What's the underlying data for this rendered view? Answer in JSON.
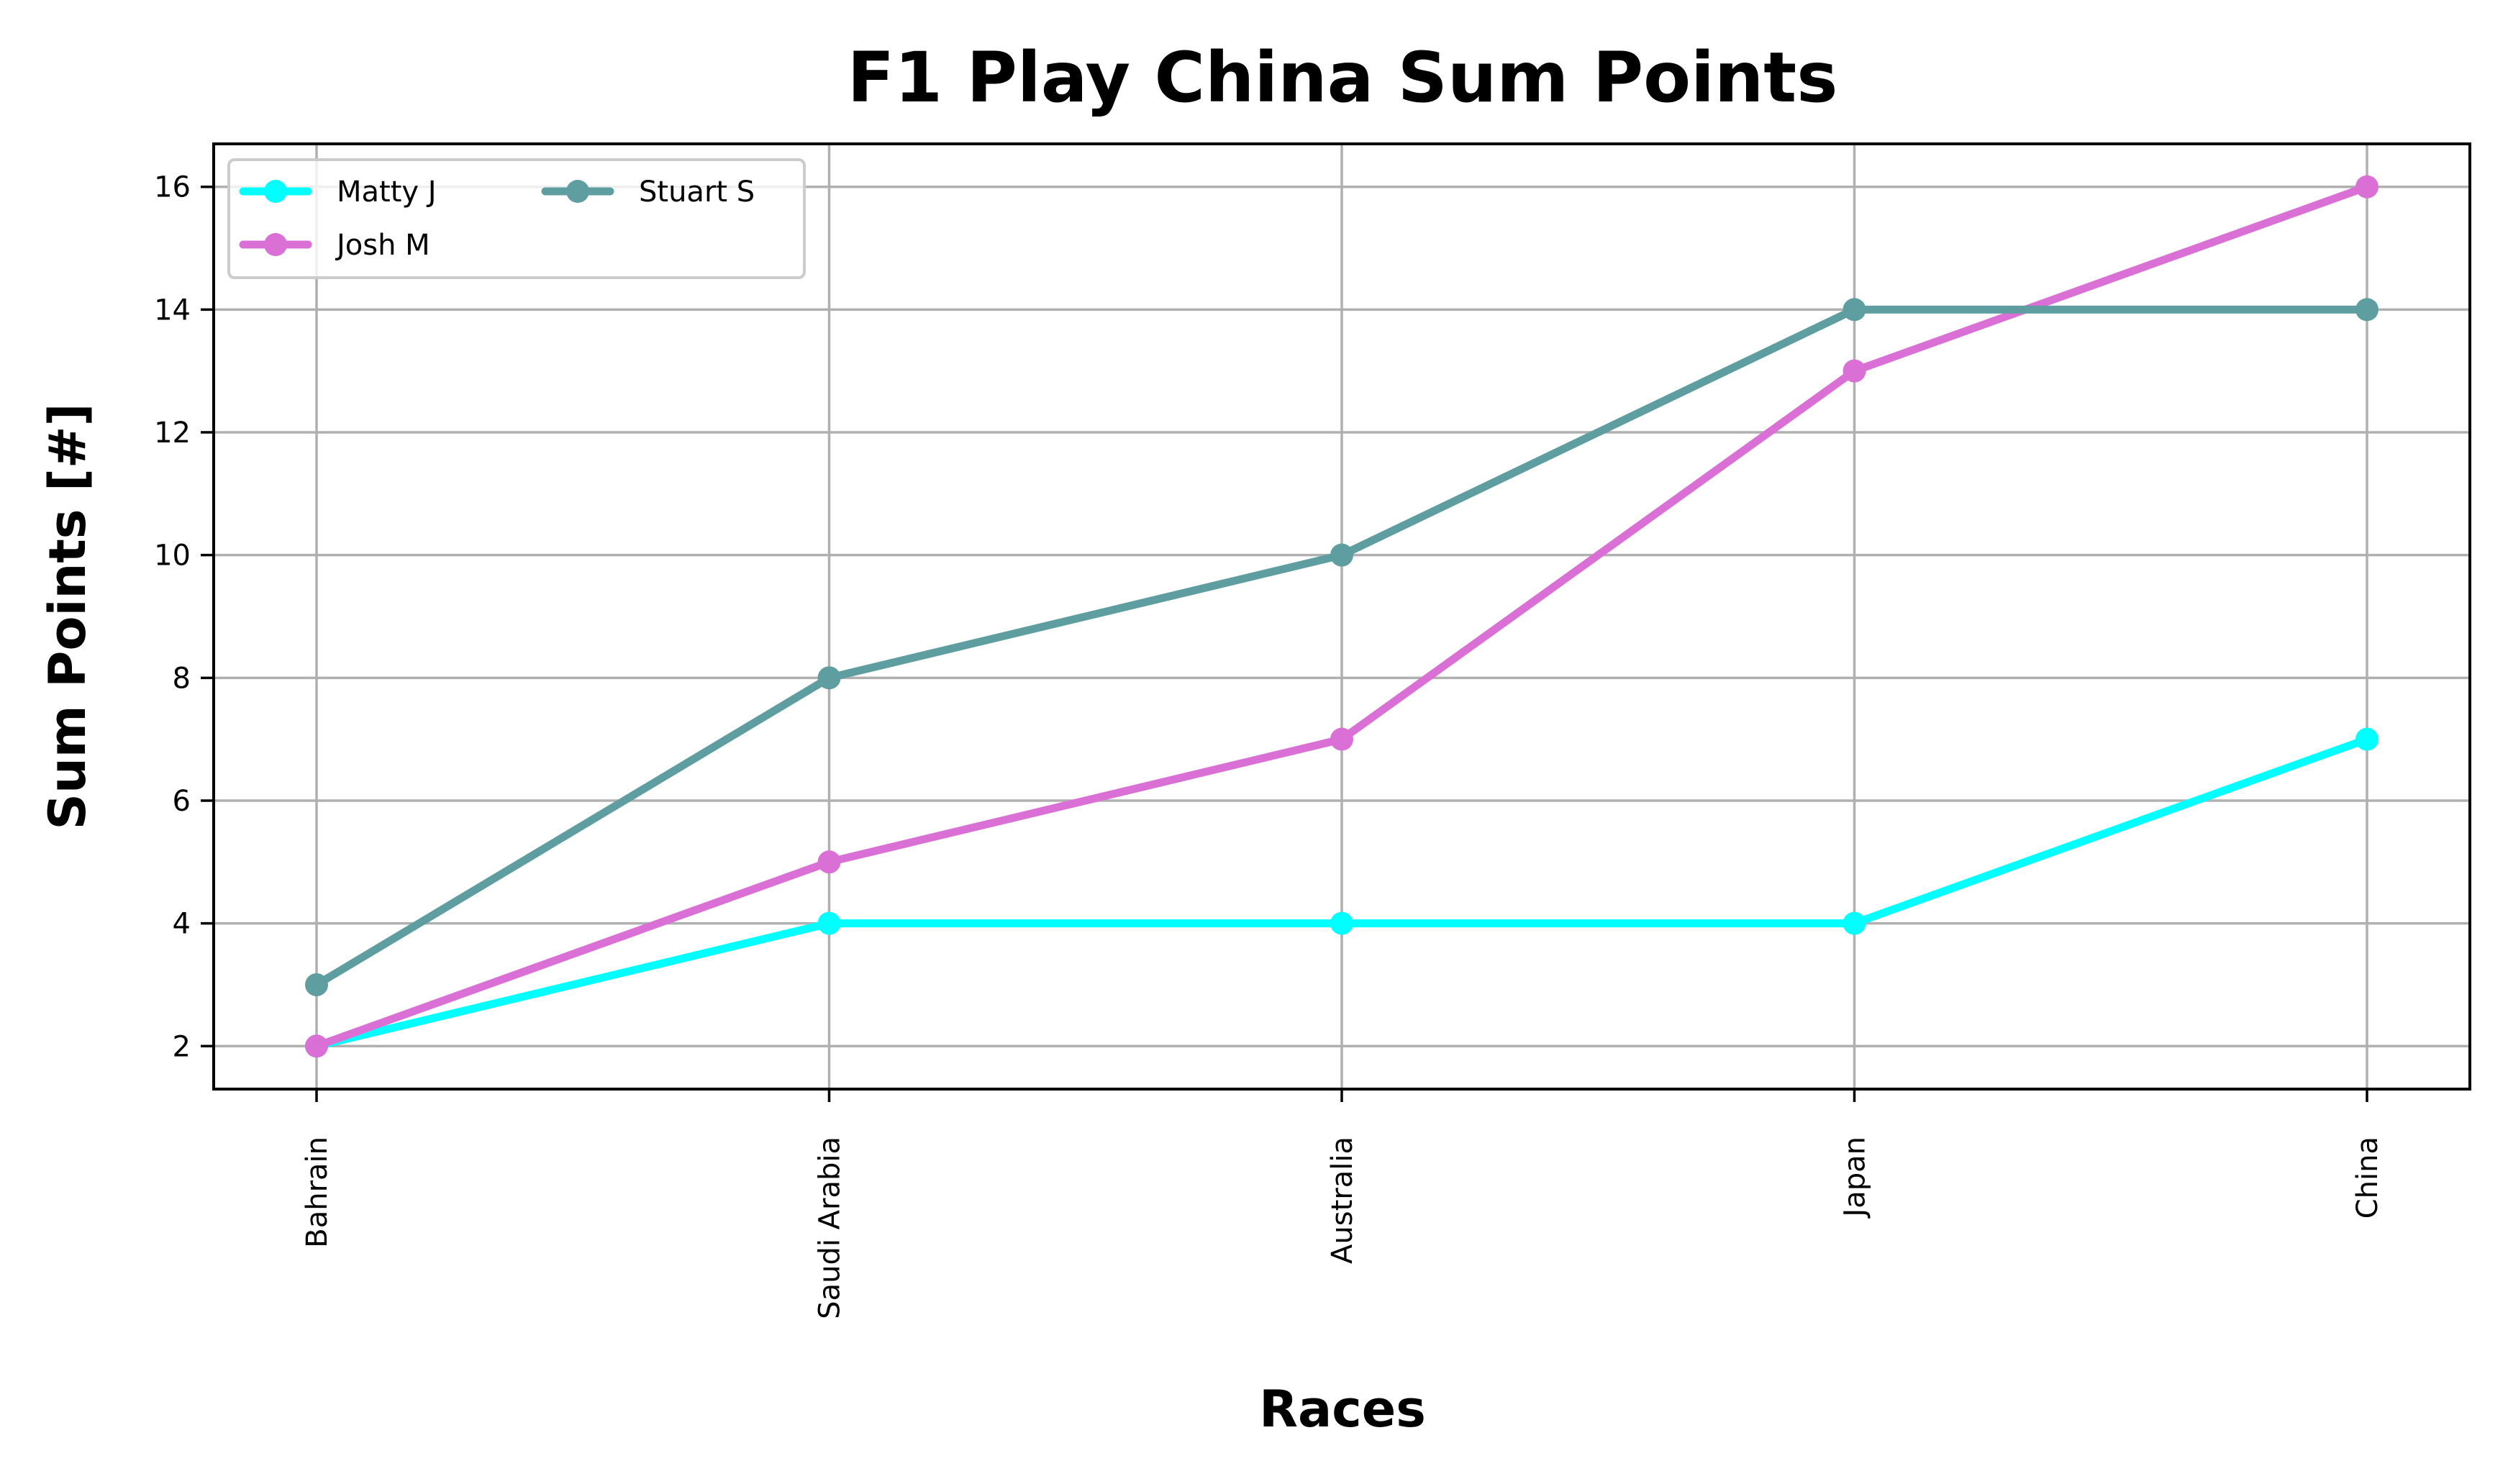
{
  "chart_data": {
    "type": "line",
    "title": "F1 Play China Sum Points",
    "xlabel": "Races",
    "ylabel": "Sum Points [#]",
    "categories": [
      "Bahrain",
      "Saudi Arabia",
      "Australia",
      "Japan",
      "China"
    ],
    "ylim": [
      1.3,
      16.7
    ],
    "yticks": [
      2,
      4,
      6,
      8,
      10,
      12,
      14,
      16
    ],
    "grid": true,
    "legend_position": "top-left",
    "legend_columns": 2,
    "series": [
      {
        "name": "Matty J",
        "color": "#00ffff",
        "marker": "circle",
        "values": [
          2,
          4,
          4,
          4,
          7
        ]
      },
      {
        "name": "Josh M",
        "color": "#da70d6",
        "marker": "circle",
        "values": [
          2,
          5,
          7,
          13,
          16
        ]
      },
      {
        "name": "Stuart S",
        "color": "#5f9ea0",
        "marker": "circle",
        "values": [
          3,
          8,
          10,
          14,
          14
        ]
      }
    ]
  }
}
